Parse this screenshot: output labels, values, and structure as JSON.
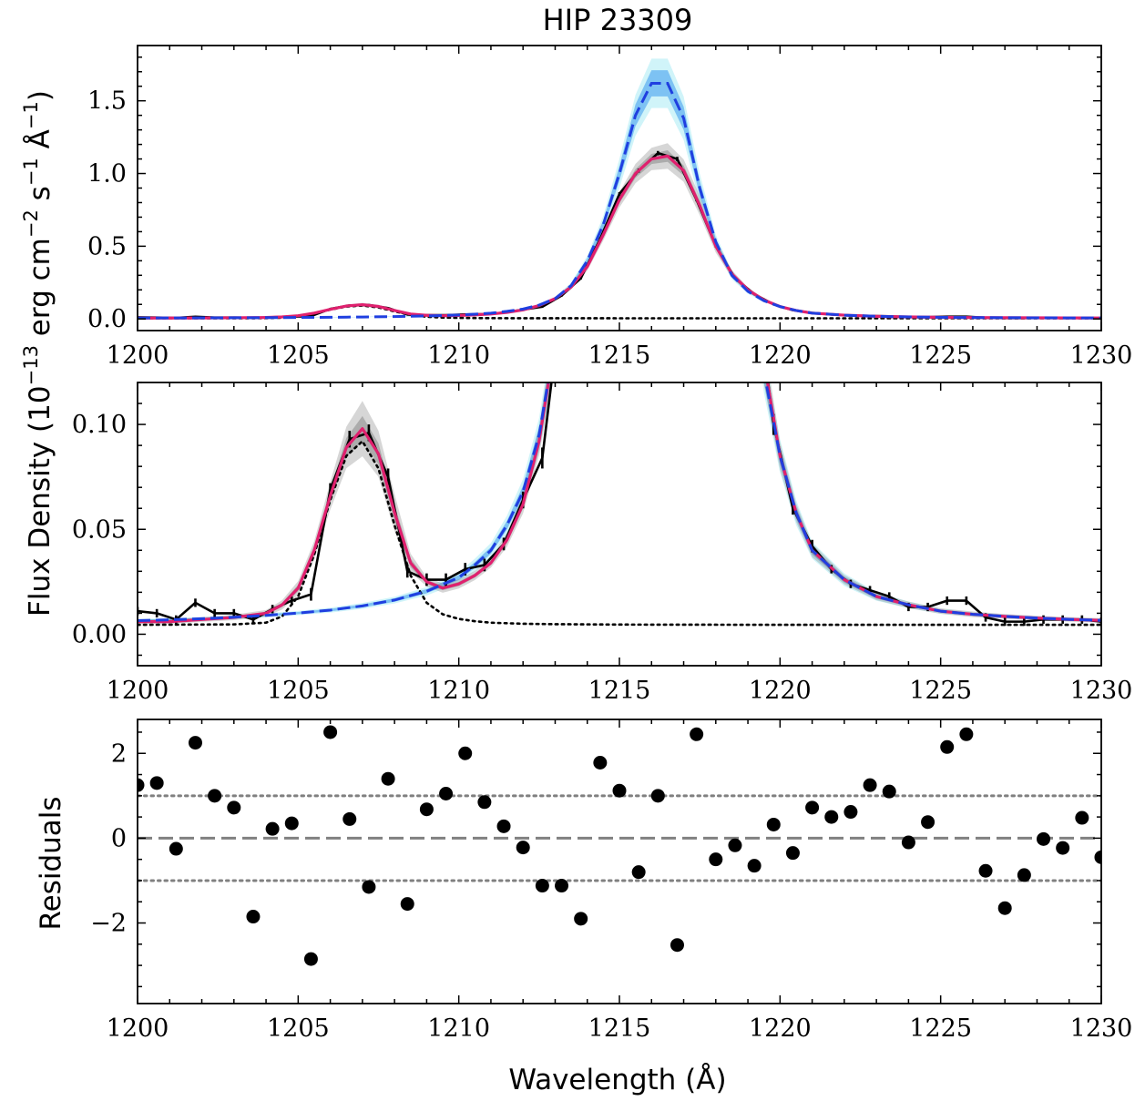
{
  "chart_data": {
    "type": "line",
    "title": "HIP 23309",
    "xlabel": "Wavelength (Å)",
    "ylabel": "Flux Density (10^-13 erg cm^-2 s^-1 Å^-1)",
    "ylabel_parts": {
      "text_before": "Flux Density (10",
      "exp1": "−13",
      "mid1": " erg cm",
      "exp2": "−2",
      "mid2": " s",
      "exp3": "−1",
      "mid3": " Å",
      "exp4": "−1",
      "text_after": ")"
    },
    "xlim": [
      1200,
      1230
    ],
    "x_ticks": [
      1200,
      1205,
      1210,
      1215,
      1220,
      1225,
      1230
    ],
    "x_tick_labels": [
      "1200",
      "1205",
      "1210",
      "1215",
      "1220",
      "1225",
      "1230"
    ],
    "colors": {
      "data": "#000000",
      "model": "#e0206e",
      "intrinsic": "#1f3fe0",
      "intrinsic_band": "#6fb8f2",
      "intrinsic_band_outer": "#c8f2f8",
      "model_band": "#8a8a8a",
      "line_component": "#000000",
      "reference": "#808080",
      "points": "#000000"
    },
    "panels": [
      {
        "name": "full",
        "ylim": [
          -0.08,
          1.88
        ],
        "y_ticks": [
          0.0,
          0.5,
          1.0,
          1.5
        ],
        "y_tick_labels": [
          "0.0",
          "0.5",
          "1.0",
          "1.5"
        ],
        "clip_intrinsic": false
      },
      {
        "name": "zoom",
        "ylim": [
          -0.015,
          0.12
        ],
        "y_ticks": [
          0.0,
          0.05,
          0.1
        ],
        "y_tick_labels": [
          "0.00",
          "0.05",
          "0.10"
        ],
        "clip_intrinsic": true
      }
    ],
    "series": [
      {
        "id": "observed",
        "style": "black solid with error bars",
        "x": [
          1200.0,
          1200.6,
          1201.2,
          1201.8,
          1202.4,
          1203.0,
          1203.6,
          1204.2,
          1204.8,
          1205.4,
          1206.0,
          1206.6,
          1207.2,
          1207.8,
          1208.4,
          1209.0,
          1209.6,
          1210.2,
          1210.8,
          1211.4,
          1212.0,
          1212.6,
          1213.2,
          1213.8,
          1214.4,
          1215.0,
          1215.6,
          1216.2,
          1216.8,
          1217.4,
          1218.0,
          1218.6,
          1219.2,
          1219.8,
          1220.4,
          1221.0,
          1221.6,
          1222.2,
          1222.8,
          1223.4,
          1224.0,
          1224.6,
          1225.2,
          1225.8,
          1226.4,
          1227.0,
          1227.6,
          1228.2,
          1228.8,
          1229.4,
          1230.0
        ],
        "y": [
          0.011,
          0.01,
          0.007,
          0.015,
          0.01,
          0.01,
          0.007,
          0.012,
          0.016,
          0.019,
          0.069,
          0.093,
          0.096,
          0.075,
          0.03,
          0.026,
          0.026,
          0.031,
          0.033,
          0.043,
          0.064,
          0.084,
          0.16,
          0.28,
          0.55,
          0.86,
          1.02,
          1.14,
          1.1,
          0.82,
          0.5,
          0.28,
          0.17,
          0.1,
          0.06,
          0.042,
          0.031,
          0.024,
          0.021,
          0.018,
          0.013,
          0.013,
          0.016,
          0.016,
          0.008,
          0.006,
          0.006,
          0.007,
          0.007,
          0.007,
          0.006
        ],
        "yerr": [
          0.002,
          0.002,
          0.002,
          0.002,
          0.002,
          0.002,
          0.002,
          0.002,
          0.002,
          0.003,
          0.003,
          0.004,
          0.004,
          0.004,
          0.003,
          0.003,
          0.003,
          0.003,
          0.003,
          0.003,
          0.004,
          0.005,
          0.006,
          0.008,
          0.01,
          0.012,
          0.014,
          0.015,
          0.015,
          0.012,
          0.01,
          0.008,
          0.006,
          0.005,
          0.003,
          0.003,
          0.002,
          0.002,
          0.002,
          0.002,
          0.002,
          0.002,
          0.002,
          0.002,
          0.002,
          0.002,
          0.002,
          0.002,
          0.002,
          0.002,
          0.002
        ]
      },
      {
        "id": "model",
        "style": "crimson solid with grey band",
        "x": [
          1200.0,
          1201.0,
          1202.0,
          1203.0,
          1204.0,
          1204.5,
          1205.0,
          1205.5,
          1206.0,
          1206.5,
          1207.0,
          1207.5,
          1208.0,
          1208.5,
          1209.0,
          1209.5,
          1210.0,
          1210.5,
          1211.0,
          1211.5,
          1212.0,
          1212.5,
          1213.0,
          1213.5,
          1214.0,
          1214.5,
          1215.0,
          1215.5,
          1216.0,
          1216.5,
          1217.0,
          1217.5,
          1218.0,
          1218.5,
          1219.0,
          1219.5,
          1220.0,
          1220.5,
          1221.0,
          1222.0,
          1223.0,
          1224.0,
          1225.0,
          1226.0,
          1227.0,
          1228.0,
          1229.0,
          1230.0
        ],
        "y": [
          0.006,
          0.006,
          0.007,
          0.008,
          0.01,
          0.014,
          0.022,
          0.04,
          0.066,
          0.089,
          0.098,
          0.086,
          0.058,
          0.034,
          0.025,
          0.022,
          0.024,
          0.028,
          0.034,
          0.045,
          0.062,
          0.092,
          0.14,
          0.22,
          0.36,
          0.58,
          0.82,
          1.0,
          1.1,
          1.12,
          1.02,
          0.78,
          0.5,
          0.31,
          0.2,
          0.13,
          0.085,
          0.058,
          0.04,
          0.026,
          0.018,
          0.014,
          0.011,
          0.0095,
          0.0085,
          0.0077,
          0.0071,
          0.0066
        ],
        "band_halfwidth": [
          0.0005,
          0.0005,
          0.0005,
          0.0006,
          0.0007,
          0.001,
          0.0015,
          0.002,
          0.003,
          0.0045,
          0.006,
          0.005,
          0.004,
          0.002,
          0.001,
          0.001,
          0.001,
          0.001,
          0.001,
          0.0015,
          0.002,
          0.003,
          0.005,
          0.008,
          0.012,
          0.018,
          0.024,
          0.03,
          0.035,
          0.04,
          0.035,
          0.03,
          0.02,
          0.012,
          0.008,
          0.005,
          0.003,
          0.002,
          0.0015,
          0.001,
          0.0008,
          0.0007,
          0.0006,
          0.0006,
          0.0005,
          0.0005,
          0.0005,
          0.0005
        ]
      },
      {
        "id": "intrinsic",
        "style": "blue dashed with light-blue band",
        "x": [
          1200.0,
          1201.0,
          1202.0,
          1203.0,
          1204.0,
          1205.0,
          1206.0,
          1207.0,
          1208.0,
          1209.0,
          1210.0,
          1210.5,
          1211.0,
          1211.5,
          1212.0,
          1212.5,
          1213.0,
          1213.5,
          1214.0,
          1214.5,
          1215.0,
          1215.5,
          1216.0,
          1216.5,
          1217.0,
          1217.5,
          1218.0,
          1218.5,
          1219.0,
          1219.5,
          1220.0,
          1220.5,
          1221.0,
          1222.0,
          1223.0,
          1224.0,
          1225.0,
          1226.0,
          1227.0,
          1228.0,
          1229.0,
          1230.0
        ],
        "y": [
          0.0065,
          0.0069,
          0.0074,
          0.0081,
          0.009,
          0.0101,
          0.0115,
          0.0135,
          0.0163,
          0.0205,
          0.027,
          0.033,
          0.04,
          0.052,
          0.068,
          0.095,
          0.14,
          0.23,
          0.4,
          0.65,
          1.0,
          1.4,
          1.62,
          1.62,
          1.38,
          0.9,
          0.53,
          0.3,
          0.19,
          0.125,
          0.085,
          0.058,
          0.04,
          0.026,
          0.018,
          0.014,
          0.011,
          0.0095,
          0.0085,
          0.0077,
          0.0071,
          0.0066
        ],
        "band_inner": [
          0.0004,
          0.0004,
          0.0004,
          0.0004,
          0.0005,
          0.0005,
          0.0006,
          0.0007,
          0.0008,
          0.001,
          0.0012,
          0.0014,
          0.0016,
          0.002,
          0.0028,
          0.004,
          0.006,
          0.01,
          0.018,
          0.03,
          0.05,
          0.075,
          0.09,
          0.09,
          0.08,
          0.05,
          0.025,
          0.014,
          0.008,
          0.005,
          0.004,
          0.003,
          0.002,
          0.0014,
          0.001,
          0.0008,
          0.0006,
          0.0005,
          0.0005,
          0.0004,
          0.0004,
          0.0004
        ],
        "band_outer": [
          0.0008,
          0.0008,
          0.0008,
          0.0009,
          0.001,
          0.001,
          0.0012,
          0.0014,
          0.0016,
          0.002,
          0.0025,
          0.003,
          0.0035,
          0.0045,
          0.006,
          0.008,
          0.012,
          0.02,
          0.035,
          0.06,
          0.1,
          0.14,
          0.17,
          0.17,
          0.15,
          0.1,
          0.05,
          0.028,
          0.016,
          0.01,
          0.008,
          0.006,
          0.004,
          0.003,
          0.002,
          0.0016,
          0.0012,
          0.001,
          0.001,
          0.0008,
          0.0008,
          0.0008
        ]
      },
      {
        "id": "line_component",
        "style": "black dotted",
        "x": [
          1200.0,
          1203.0,
          1204.0,
          1204.5,
          1205.0,
          1205.5,
          1206.0,
          1206.5,
          1207.0,
          1207.5,
          1208.0,
          1208.5,
          1209.0,
          1209.5,
          1210.0,
          1210.5,
          1211.0,
          1212.0,
          1213.0,
          1215.0,
          1220.0,
          1225.0,
          1230.0
        ],
        "y": [
          0.0045,
          0.0047,
          0.0055,
          0.0085,
          0.018,
          0.038,
          0.064,
          0.085,
          0.092,
          0.079,
          0.052,
          0.028,
          0.015,
          0.0095,
          0.0073,
          0.0062,
          0.0055,
          0.005,
          0.0048,
          0.0046,
          0.0045,
          0.0045,
          0.0045
        ]
      }
    ],
    "residuals": {
      "ylabel": "Residuals",
      "ylim": [
        -3.9,
        2.8
      ],
      "y_ticks": [
        -2,
        0,
        2
      ],
      "y_tick_labels": [
        "−2",
        "0",
        "2"
      ],
      "reference_lines": [
        -1,
        0,
        1
      ],
      "x": [
        1200.0,
        1200.6,
        1201.2,
        1201.8,
        1202.4,
        1203.0,
        1203.6,
        1204.2,
        1204.8,
        1205.4,
        1206.0,
        1206.6,
        1207.2,
        1207.8,
        1208.4,
        1209.0,
        1209.6,
        1210.2,
        1210.8,
        1211.4,
        1212.0,
        1212.6,
        1213.2,
        1213.8,
        1214.4,
        1215.0,
        1215.6,
        1216.2,
        1216.8,
        1217.4,
        1218.0,
        1218.6,
        1219.2,
        1219.8,
        1220.4,
        1221.0,
        1221.6,
        1222.2,
        1222.8,
        1223.4,
        1224.0,
        1224.6,
        1225.2,
        1225.8,
        1226.4,
        1227.0,
        1227.6,
        1228.2,
        1228.8,
        1229.4,
        1230.0
      ],
      "y": [
        1.25,
        1.3,
        -0.25,
        2.25,
        1.0,
        0.72,
        -1.85,
        0.22,
        0.35,
        -2.85,
        2.5,
        0.45,
        -1.15,
        1.4,
        -1.55,
        0.68,
        1.05,
        2.0,
        0.85,
        0.28,
        -0.22,
        -1.12,
        -1.12,
        -1.9,
        1.78,
        1.12,
        -0.8,
        1.0,
        -2.52,
        2.45,
        -0.5,
        -0.17,
        -0.65,
        0.32,
        -0.35,
        0.72,
        0.5,
        0.62,
        1.25,
        1.1,
        -0.1,
        0.38,
        2.15,
        2.45,
        -0.77,
        -1.65,
        -0.87,
        -0.02,
        -0.23,
        0.48,
        -0.45
      ]
    }
  }
}
